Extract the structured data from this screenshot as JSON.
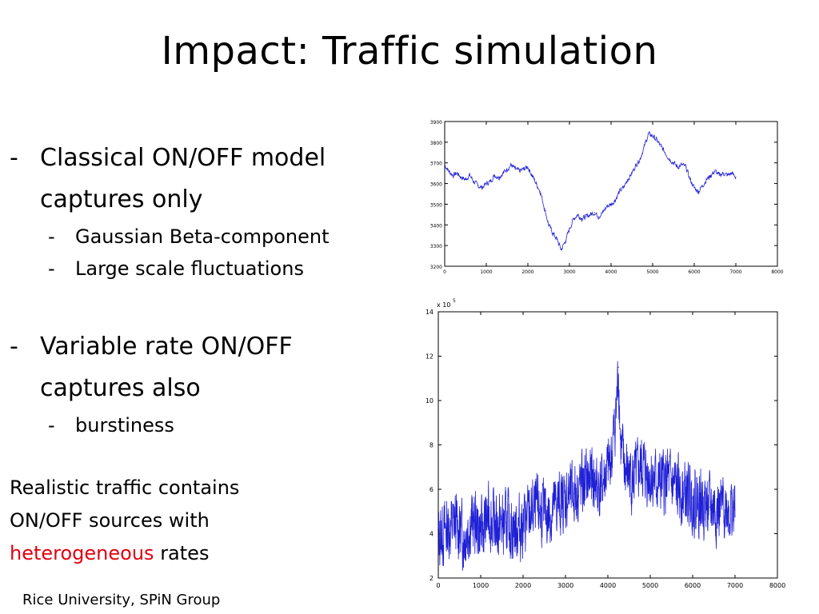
{
  "slide": {
    "title": "Impact: Traffic simulation",
    "dash": "-",
    "bullets": [
      {
        "text_line1": "Classical ON/OFF model",
        "text_line2": "captures only",
        "sub": [
          "Gaussian Beta-component",
          "Large scale fluctuations"
        ]
      },
      {
        "text_line1": "Variable rate ON/OFF",
        "text_line2": "captures also",
        "sub": [
          "burstiness"
        ]
      }
    ],
    "conclusion": {
      "line1": "Realistic traffic contains",
      "line2": "ON/OFF  sources with",
      "highlight": "heterogeneous",
      "tail": " rates",
      "highlight_color": "#e3000f"
    },
    "footer": "Rice University, SPiN Group"
  },
  "chart_data": [
    {
      "type": "line",
      "title": "",
      "xlabel": "",
      "ylabel": "",
      "xlim": [
        0,
        8000
      ],
      "ylim": [
        3200,
        3900
      ],
      "xticks": [
        "0",
        "1000",
        "2000",
        "3000",
        "4000",
        "5000",
        "6000",
        "7000",
        "8000"
      ],
      "yticks": [
        "3200",
        "3300",
        "3400",
        "3500",
        "3600",
        "3700",
        "3800",
        "3900"
      ],
      "color": "#1f1fd6",
      "series": [
        {
          "x": [
            0,
            100,
            200,
            300,
            400,
            500,
            600,
            700,
            800,
            900,
            1000,
            1100,
            1200,
            1300,
            1400,
            1500,
            1600,
            1700,
            1800,
            1900,
            2000,
            2100,
            2200,
            2300,
            2400,
            2500,
            2600,
            2700,
            2800,
            2900,
            3000,
            3100,
            3200,
            3300,
            3400,
            3500,
            3600,
            3700,
            3800,
            3900,
            4000,
            4100,
            4200,
            4300,
            4400,
            4500,
            4600,
            4700,
            4800,
            4900,
            5000,
            5100,
            5200,
            5300,
            5400,
            5500,
            5600,
            5700,
            5800,
            5900,
            6000,
            6100,
            6200,
            6300,
            6400,
            6500,
            6600,
            6700,
            6800,
            6900,
            7000
          ],
          "values": [
            3690,
            3660,
            3640,
            3650,
            3630,
            3620,
            3640,
            3610,
            3590,
            3580,
            3600,
            3610,
            3640,
            3630,
            3650,
            3670,
            3690,
            3670,
            3660,
            3670,
            3680,
            3640,
            3600,
            3560,
            3480,
            3400,
            3360,
            3330,
            3280,
            3320,
            3380,
            3430,
            3450,
            3430,
            3440,
            3450,
            3460,
            3440,
            3460,
            3490,
            3500,
            3520,
            3560,
            3580,
            3620,
            3650,
            3690,
            3720,
            3780,
            3840,
            3830,
            3810,
            3780,
            3750,
            3720,
            3700,
            3680,
            3690,
            3680,
            3620,
            3580,
            3560,
            3590,
            3620,
            3640,
            3660,
            3640,
            3650,
            3640,
            3650,
            3630
          ]
        }
      ]
    },
    {
      "type": "line",
      "title": "",
      "xlabel": "",
      "ylabel": "",
      "multiplier": "x 10",
      "multiplier_exp": "5",
      "xlim": [
        0,
        8000
      ],
      "ylim": [
        2,
        14
      ],
      "xticks": [
        "0",
        "1000",
        "2000",
        "3000",
        "4000",
        "5000",
        "6000",
        "7000",
        "8000"
      ],
      "yticks": [
        "2",
        "4",
        "6",
        "8",
        "10",
        "12",
        "14"
      ],
      "color": "#1f1fd6",
      "series": [
        {
          "x": [
            0,
            200,
            400,
            600,
            800,
            1000,
            1200,
            1400,
            1600,
            1800,
            2000,
            2200,
            2400,
            2600,
            2800,
            3000,
            3200,
            3400,
            3600,
            3800,
            4000,
            4100,
            4200,
            4250,
            4300,
            4400,
            4600,
            4800,
            5000,
            5200,
            5400,
            5600,
            5800,
            6000,
            6200,
            6400,
            6600,
            6800,
            7000
          ],
          "values": [
            3.8,
            4.2,
            4.5,
            3.9,
            4.6,
            4.1,
            4.8,
            4.3,
            4.5,
            4.2,
            4.4,
            4.9,
            5.1,
            4.8,
            5.3,
            5.6,
            5.8,
            6.2,
            6.5,
            6.0,
            6.8,
            7.6,
            9.5,
            11.5,
            8.0,
            6.9,
            6.4,
            7.0,
            6.6,
            6.2,
            6.4,
            6.0,
            5.8,
            5.6,
            5.4,
            5.2,
            5.0,
            5.3,
            4.8
          ]
        }
      ]
    }
  ]
}
